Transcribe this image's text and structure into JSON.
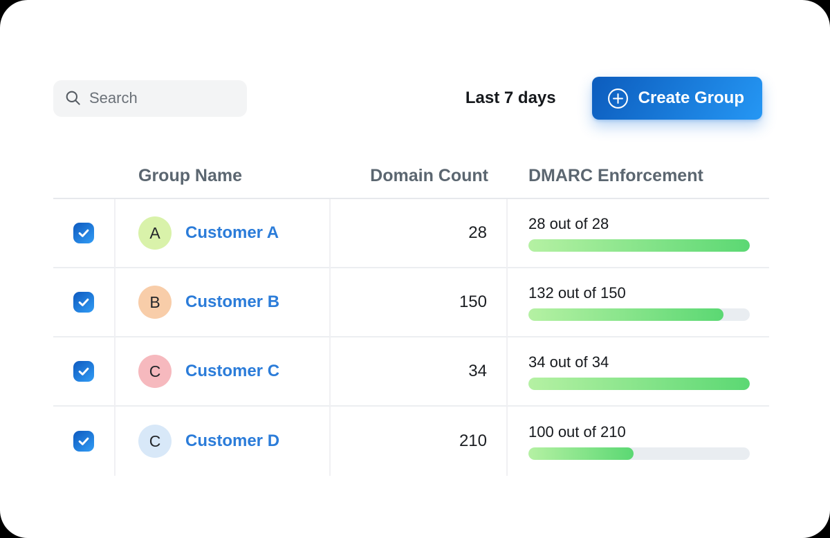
{
  "toolbar": {
    "search": {
      "placeholder": "Search"
    },
    "date_range": "Last 7 days",
    "create_group_label": "Create Group"
  },
  "table": {
    "columns": [
      {
        "label": "Group Name"
      },
      {
        "label": "Domain Count"
      },
      {
        "label": "DMARC Enforcement"
      }
    ],
    "rows": [
      {
        "selected": true,
        "avatar_initial": "A",
        "avatar_bg": "#d9f2aa",
        "name": "Customer A",
        "domain_count": "28",
        "enforcement": {
          "label": "28 out of 28",
          "value": 28,
          "total": 28,
          "percent": 100
        }
      },
      {
        "selected": true,
        "avatar_initial": "B",
        "avatar_bg": "#f8cda9",
        "name": "Customer B",
        "domain_count": "150",
        "enforcement": {
          "label": "132 out of 150",
          "value": 132,
          "total": 150,
          "percent": 88
        }
      },
      {
        "selected": true,
        "avatar_initial": "C",
        "avatar_bg": "#f6b9be",
        "name": "Customer C",
        "domain_count": "34",
        "enforcement": {
          "label": "34 out of 34",
          "value": 34,
          "total": 34,
          "percent": 100
        }
      },
      {
        "selected": true,
        "avatar_initial": "C",
        "avatar_bg": "#d8e8f8",
        "name": "Customer D",
        "domain_count": "210",
        "enforcement": {
          "label": "100 out of 210",
          "value": 100,
          "total": 210,
          "percent": 47.6
        }
      }
    ]
  },
  "colors": {
    "accent_blue": "#1e7de0",
    "link_blue": "#2b7cd9",
    "progress_start": "#b5f1a3",
    "progress_end": "#5bd873",
    "progress_track": "#e9edf1",
    "header_text": "#5b6670"
  }
}
